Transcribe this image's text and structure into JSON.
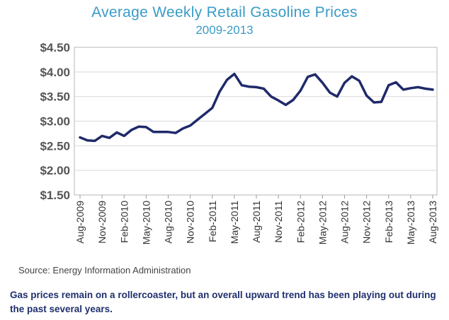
{
  "chart_data": {
    "type": "line",
    "title": "Average Weekly Retail Gasoline Prices",
    "subtitle": "2009-2013",
    "xlabel": "",
    "ylabel": "",
    "ylim": [
      1.5,
      4.5
    ],
    "yticks": [
      "$1.50",
      "$2.00",
      "$2.50",
      "$3.00",
      "$3.50",
      "$4.00",
      "$4.50"
    ],
    "ytick_values": [
      1.5,
      2.0,
      2.5,
      3.0,
      3.5,
      4.0,
      4.5
    ],
    "xticks": [
      "Aug-2009",
      "Nov-2009",
      "Feb-2010",
      "May-2010",
      "Aug-2010",
      "Nov-2010",
      "Feb-2011",
      "May-2011",
      "Aug-2011",
      "Nov-2011",
      "Feb-2012",
      "May-2012",
      "Aug-2012",
      "Nov-2012",
      "Feb-2013",
      "May-2013",
      "Aug-2013"
    ],
    "grid": true,
    "line_color": "#1f2a6b",
    "series": [
      {
        "values": [
          2.67,
          2.61,
          2.6,
          2.7,
          2.66,
          2.77,
          2.7,
          2.82,
          2.89,
          2.88,
          2.78,
          2.78,
          2.78,
          2.76,
          2.85,
          2.91,
          3.03,
          3.15,
          3.27,
          3.6,
          3.84,
          3.96,
          3.73,
          3.7,
          3.69,
          3.66,
          3.5,
          3.42,
          3.33,
          3.43,
          3.62,
          3.9,
          3.95,
          3.78,
          3.58,
          3.5,
          3.78,
          3.91,
          3.82,
          3.52,
          3.38,
          3.39,
          3.73,
          3.79,
          3.64,
          3.67,
          3.69,
          3.66,
          3.64
        ]
      }
    ]
  },
  "source": "Source:  Energy Information Administration",
  "caption": "Gas prices remain on a rollercoaster, but an overall upward trend has been playing out during the past several years."
}
